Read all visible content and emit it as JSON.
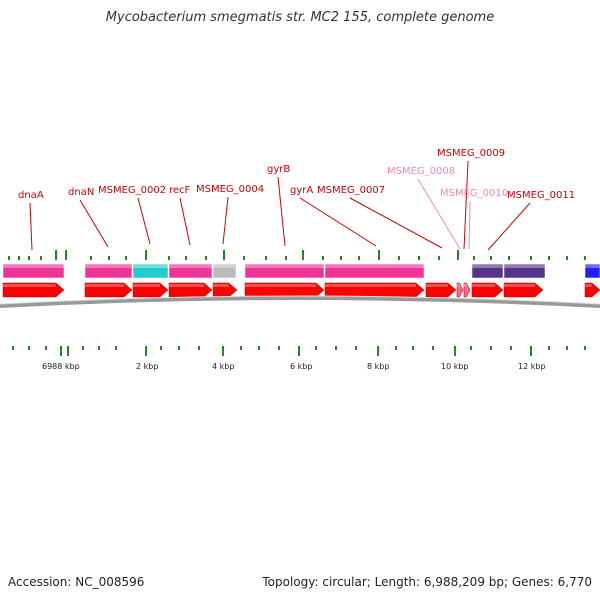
{
  "title": "Mycobacterium smegmatis str. MC2 155, complete genome",
  "footer": {
    "accession": "Accession: NC_008596",
    "summary": "Topology: circular; Length: 6,988,209 bp; Genes: 6,770"
  },
  "colors": {
    "gene_label": "#cc0000",
    "gene_label_faded": "#ee88bb",
    "cds_arrow": "#ff0000",
    "backbone": "#999999",
    "tick": "#228822",
    "pink_feature": "#ee3399",
    "cyan_feature": "#22cccc",
    "grey_feature": "#bbbbbb",
    "purple_feature": "#553388",
    "blue_feature": "#2222ee"
  },
  "gene_labels": [
    {
      "name": "dnaA",
      "faded": false
    },
    {
      "name": "dnaN",
      "faded": false
    },
    {
      "name": "MSMEG_0002",
      "faded": false
    },
    {
      "name": "recF",
      "faded": false
    },
    {
      "name": "MSMEG_0004",
      "faded": false
    },
    {
      "name": "gyrB",
      "faded": false
    },
    {
      "name": "gyrA",
      "faded": false
    },
    {
      "name": "MSMEG_0007",
      "faded": false
    },
    {
      "name": "MSMEG_0008",
      "faded": true
    },
    {
      "name": "MSMEG_0009",
      "faded": false
    },
    {
      "name": "MSMEG_0010",
      "faded": true
    },
    {
      "name": "MSMEG_0011",
      "faded": false
    }
  ],
  "scale_labels": [
    "6988 kbp",
    "2 kbp",
    "4 kbp",
    "6 kbp",
    "8 kbp",
    "10 kbp",
    "12 kbp"
  ]
}
